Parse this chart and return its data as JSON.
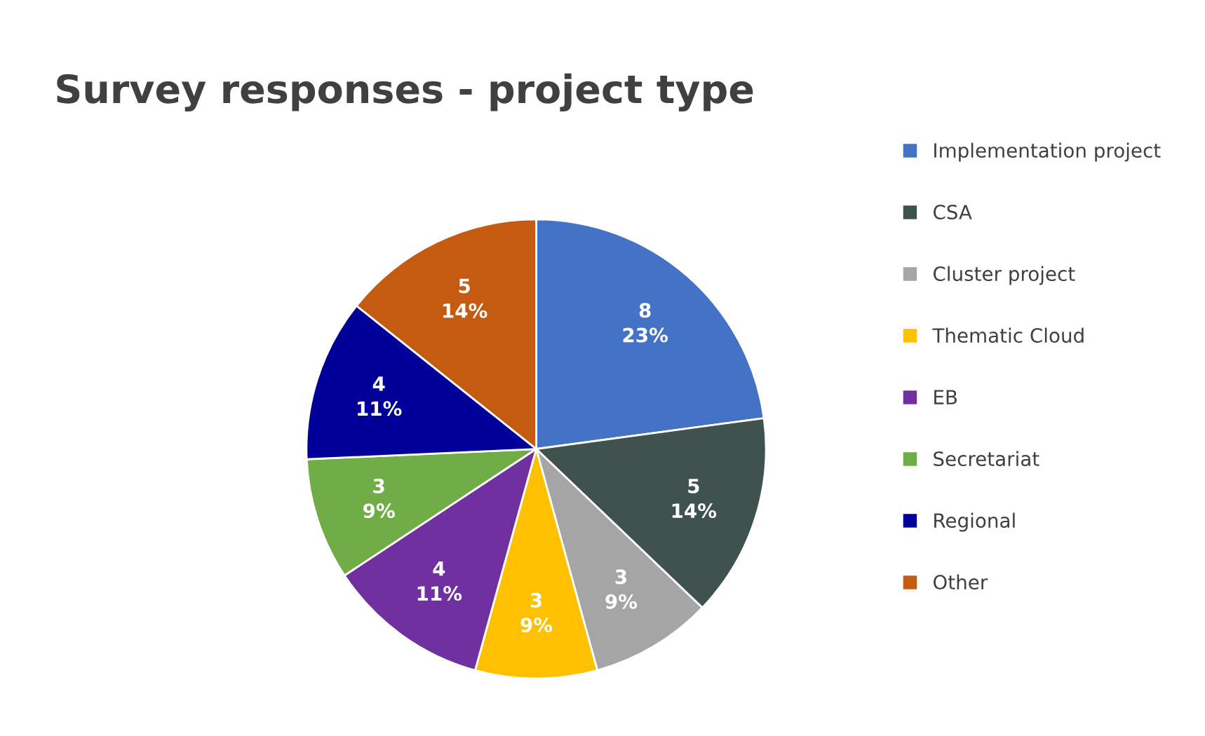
{
  "chart_data": {
    "type": "pie",
    "title": "Survey responses - project type",
    "categories": [
      "Implementation project",
      "CSA",
      "Cluster project",
      "Thematic Cloud",
      "EB",
      "Secretariat",
      "Regional",
      "Other"
    ],
    "values": [
      8,
      5,
      3,
      3,
      4,
      3,
      4,
      5
    ],
    "value_labels": [
      "8\n23%",
      "5\n14%",
      "3\n9%",
      "3\n9%",
      "4\n11%",
      "3\n9%",
      "4\n11%",
      "5\n14%"
    ],
    "colors": [
      "#4472c4",
      "#3f524d",
      "#a5a5a5",
      "#ffc000",
      "#7030a0",
      "#70ad47",
      "#000099",
      "#c55a11"
    ],
    "legend": "right"
  }
}
